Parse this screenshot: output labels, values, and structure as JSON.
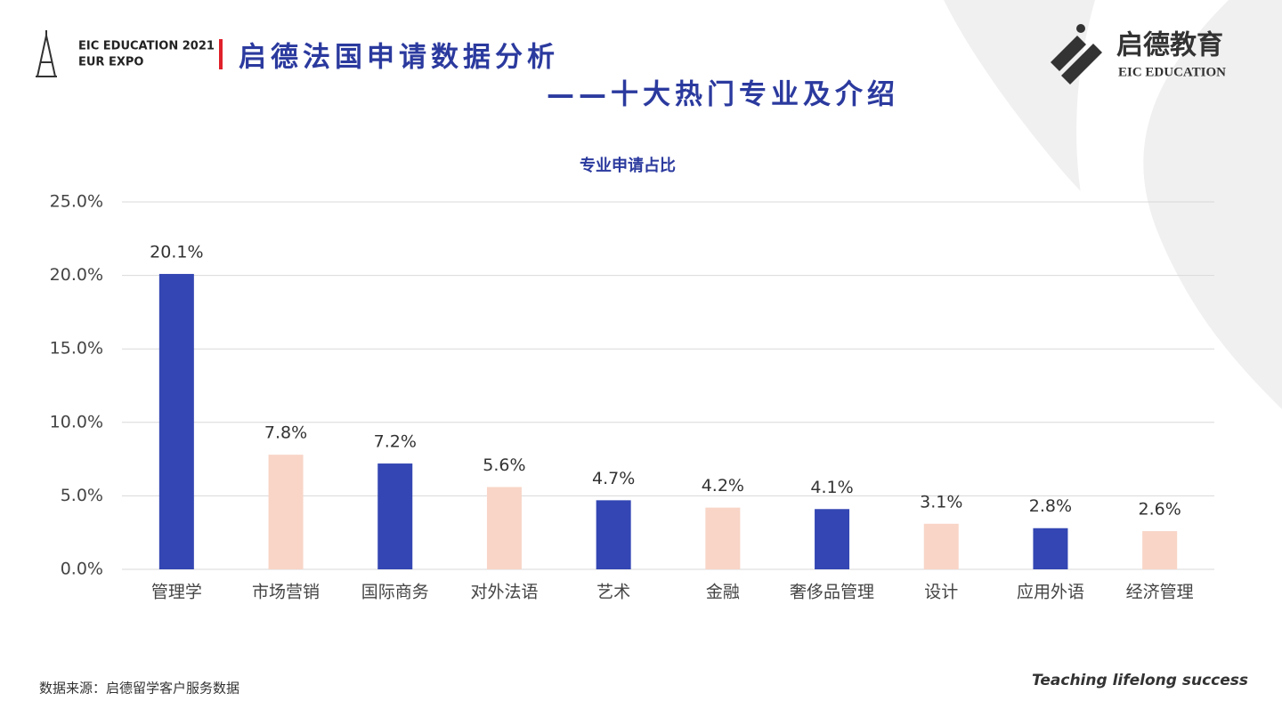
{
  "header": {
    "expo_line1": "EIC EDUCATION 2021",
    "expo_line2": "EUR EXPO",
    "title": "启德法国申请数据分析",
    "subtitle": "——十大热门专业及介绍",
    "logo_cn": "启德教育",
    "logo_en": "EIC EDUCATION"
  },
  "chart_data": {
    "type": "bar",
    "title": "专业申请占比",
    "categories": [
      "管理学",
      "市场营销",
      "国际商务",
      "对外法语",
      "艺术",
      "金融",
      "奢侈品管理",
      "设计",
      "应用外语",
      "经济管理"
    ],
    "values": [
      20.1,
      7.8,
      7.2,
      5.6,
      4.7,
      4.2,
      4.1,
      3.1,
      2.8,
      2.6
    ],
    "value_labels": [
      "20.1%",
      "7.8%",
      "7.2%",
      "5.6%",
      "4.7%",
      "4.2%",
      "4.1%",
      "3.1%",
      "2.8%",
      "2.6%"
    ],
    "colors": [
      "#3346b3",
      "#f8d5c7",
      "#3346b3",
      "#f8d5c7",
      "#3346b3",
      "#f8d5c7",
      "#3346b3",
      "#f8d5c7",
      "#3346b3",
      "#f8d5c7"
    ],
    "ylim": [
      0,
      25
    ],
    "yticks": [
      {
        "value": 0,
        "label": "0.0%"
      },
      {
        "value": 5,
        "label": "5.0%"
      },
      {
        "value": 10,
        "label": "10.0%"
      },
      {
        "value": 15,
        "label": "15.0%"
      },
      {
        "value": 20,
        "label": "20.0%"
      },
      {
        "value": 25,
        "label": "25.0%"
      }
    ],
    "grid": true
  },
  "footer": {
    "source": "数据来源：启德留学客户服务数据",
    "slogan": "Teaching lifelong success"
  }
}
